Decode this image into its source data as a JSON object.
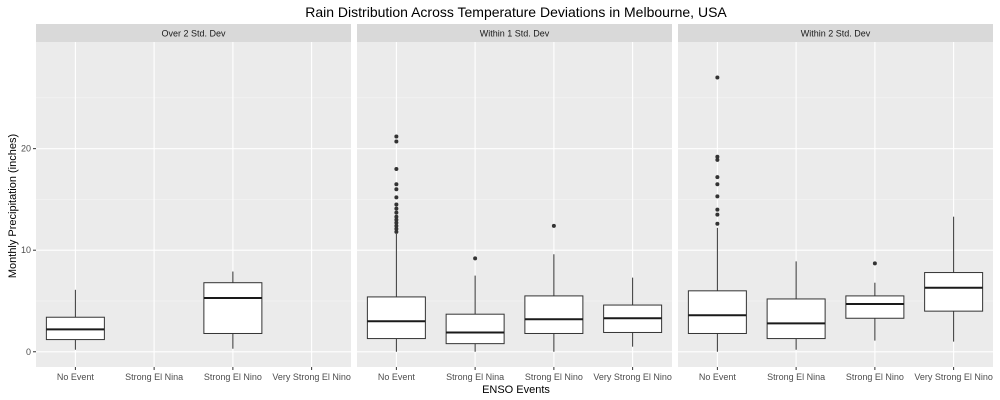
{
  "chart_data": {
    "type": "boxplot",
    "title": "Rain Distribution Across Temperature Deviations in Melbourne, USA",
    "xlabel": "ENSO Events",
    "ylabel": "Monthly Precipitation (inches)",
    "ylim": [
      -1.5,
      30.5
    ],
    "y_ticks": [
      0,
      10,
      20
    ],
    "y_tick_labels": [
      "0",
      "10",
      "20"
    ],
    "categories": [
      "No Event",
      "Strong El Nina",
      "Strong El Nino",
      "Very Strong El Nino"
    ],
    "x_tick_labels": [
      "No Event",
      "Strong El Nina",
      "Strong El Nino",
      "Very Strong El Nino"
    ],
    "grid": true,
    "legend": "none",
    "panels": [
      {
        "label": "Over 2 Std. Dev",
        "boxes": [
          {
            "category": "No Event",
            "low": 0.2,
            "q1": 1.2,
            "median": 2.2,
            "q3": 3.4,
            "high": 6.1,
            "outliers": []
          },
          {
            "category": "Strong El Nino",
            "low": 0.3,
            "q1": 1.8,
            "median": 5.3,
            "q3": 6.8,
            "high": 7.9,
            "outliers": []
          }
        ]
      },
      {
        "label": "Within 1 Std. Dev",
        "boxes": [
          {
            "category": "No Event",
            "low": 0.0,
            "q1": 1.3,
            "median": 3.0,
            "q3": 5.4,
            "high": 11.6,
            "outliers": [
              11.8,
              12.1,
              12.4,
              12.7,
              13.0,
              13.3,
              13.7,
              14.1,
              14.5,
              15.2,
              16.0,
              16.5,
              18.0,
              20.7,
              21.2
            ]
          },
          {
            "category": "Strong El Nina",
            "low": 0.0,
            "q1": 0.8,
            "median": 1.9,
            "q3": 3.7,
            "high": 7.5,
            "outliers": [
              9.2
            ]
          },
          {
            "category": "Strong El Nino",
            "low": 0.0,
            "q1": 1.8,
            "median": 3.2,
            "q3": 5.5,
            "high": 9.6,
            "outliers": [
              12.4
            ]
          },
          {
            "category": "Very Strong El Nino",
            "low": 0.5,
            "q1": 1.9,
            "median": 3.3,
            "q3": 4.6,
            "high": 7.3,
            "outliers": []
          }
        ]
      },
      {
        "label": "Within 2 Std. Dev",
        "boxes": [
          {
            "category": "No Event",
            "low": 0.0,
            "q1": 1.8,
            "median": 3.6,
            "q3": 6.0,
            "high": 12.2,
            "outliers": [
              12.6,
              13.5,
              14.0,
              15.3,
              16.5,
              17.2,
              18.9,
              19.2,
              27.0
            ]
          },
          {
            "category": "Strong El Nina",
            "low": 0.2,
            "q1": 1.3,
            "median": 2.8,
            "q3": 5.2,
            "high": 8.9,
            "outliers": []
          },
          {
            "category": "Strong El Nino",
            "low": 1.1,
            "q1": 3.3,
            "median": 4.7,
            "q3": 5.5,
            "high": 6.8,
            "outliers": [
              8.7
            ]
          },
          {
            "category": "Very Strong El Nino",
            "low": 1.0,
            "q1": 4.0,
            "median": 6.3,
            "q3": 7.8,
            "high": 13.3,
            "outliers": []
          }
        ]
      }
    ]
  }
}
